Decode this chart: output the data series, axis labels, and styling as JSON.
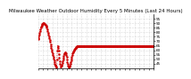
{
  "title": "Milwaukee Weather Outdoor Humidity Every 5 Minutes (Last 24 Hours)",
  "background_color": "#ffffff",
  "line_color": "#cc0000",
  "line_style": ":",
  "marker": ".",
  "marker_size": 1.5,
  "linewidth": 0.6,
  "ylim": [
    40,
    100
  ],
  "yticks": [
    45,
    50,
    55,
    60,
    65,
    70,
    75,
    80,
    85,
    90,
    95
  ],
  "ytick_labels": [
    "45",
    "50",
    "55",
    "60",
    "65",
    "70",
    "75",
    "80",
    "85",
    "90",
    "95"
  ],
  "grid_color": "#bbbbbb",
  "grid_style": ":",
  "title_fontsize": 4.0,
  "tick_fontsize": 3.0,
  "y_data": [
    72,
    73,
    75,
    77,
    79,
    81,
    83,
    85,
    86,
    87,
    88,
    89,
    89,
    90,
    90,
    90,
    89,
    89,
    88,
    88,
    87,
    86,
    85,
    83,
    81,
    79,
    77,
    75,
    73,
    71,
    69,
    67,
    65,
    63,
    61,
    59,
    57,
    55,
    53,
    51,
    49,
    47,
    45,
    44,
    43,
    42,
    41,
    50,
    60,
    65,
    63,
    60,
    56,
    52,
    48,
    45,
    42,
    42,
    43,
    44,
    46,
    48,
    50,
    52,
    54,
    56,
    57,
    58,
    58,
    57,
    55,
    53,
    50,
    47,
    45,
    43,
    42,
    41,
    42,
    43,
    45,
    47,
    49,
    51,
    53,
    55,
    57,
    58,
    59,
    60,
    61,
    62,
    62,
    63,
    63,
    64,
    64,
    65,
    65,
    65,
    65,
    65,
    65,
    65,
    65,
    65,
    65,
    65,
    65,
    65,
    65,
    65,
    65,
    65,
    65,
    65,
    65,
    65,
    65,
    65,
    65,
    65,
    65,
    65,
    65,
    65,
    65,
    65,
    65,
    65,
    65,
    65,
    65,
    65,
    65,
    65,
    65,
    65,
    65,
    65,
    65,
    65,
    65,
    65,
    65,
    65,
    65,
    65,
    65,
    65,
    65,
    65,
    65,
    65,
    65,
    65,
    65,
    65,
    65,
    65,
    65,
    65,
    65,
    65,
    65,
    65,
    65,
    65,
    65,
    65,
    65,
    65,
    65,
    65,
    65,
    65,
    65,
    65,
    65,
    65,
    65,
    65,
    65,
    65,
    65,
    65,
    65,
    65,
    65,
    65,
    65,
    65,
    65,
    65,
    65,
    65,
    65,
    65,
    65,
    65,
    65,
    65,
    65,
    65,
    65,
    65,
    65,
    65,
    65,
    65,
    65,
    65,
    65,
    65,
    65,
    65,
    65,
    65,
    65,
    65,
    65,
    65,
    65,
    65,
    65,
    65,
    65,
    65,
    65,
    65,
    65,
    65,
    65,
    65,
    65,
    65,
    65,
    65,
    65,
    65,
    65,
    65,
    65,
    65,
    65,
    65,
    65,
    65,
    65,
    65,
    65,
    65,
    65,
    65,
    65,
    65,
    65,
    65,
    65,
    65,
    65,
    65,
    65,
    65,
    65,
    65,
    65,
    65,
    65,
    65,
    65,
    65,
    65,
    65,
    65,
    65,
    65,
    65,
    65,
    65,
    65,
    65,
    65,
    65,
    65,
    65,
    65,
    65
  ]
}
